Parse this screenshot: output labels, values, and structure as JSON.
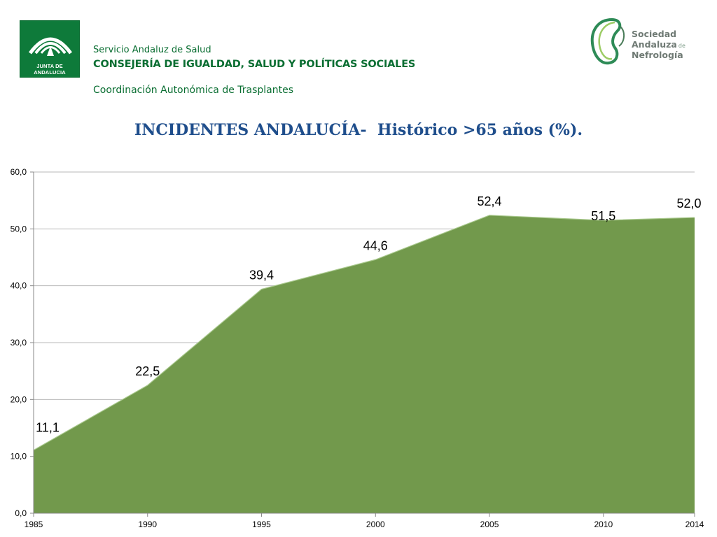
{
  "header": {
    "junta_logo_text": "JUNTA DE ANDALUCIA",
    "service": "Servicio Andaluz de Salud",
    "ministry": "CONSEJERÍA DE IGUALDAD, SALUD Y POLÍTICAS SOCIALES",
    "coordination": "Coordinación Autonómica de Trasplantes",
    "society": {
      "line1": "Sociedad",
      "line2": "Andaluza",
      "line2_suffix": "de",
      "line3": "Nefrología"
    }
  },
  "colors": {
    "area": "#72994c",
    "title": "#1f4e8c",
    "header_green": "#0a6e32",
    "grid": "#b9b9b9"
  },
  "chart_data": {
    "type": "area",
    "title": "INCIDENTES ANDALUCÍA-  Histórico >65 años (%).",
    "x": [
      1985,
      1990,
      1995,
      2000,
      2005,
      2010,
      2014
    ],
    "x_tick_labels": [
      "1985",
      "1990",
      "1995",
      "2000",
      "2005",
      "2010",
      "2014"
    ],
    "values": [
      11.1,
      22.5,
      39.4,
      44.6,
      52.4,
      51.5,
      52.0
    ],
    "data_labels": [
      "11,1",
      "22,5",
      "39,4",
      "44,6",
      "52,4",
      "51,5",
      "52,0"
    ],
    "y_tick_labels": [
      "0,0",
      "10,0",
      "20,0",
      "30,0",
      "40,0",
      "50,0",
      "60,0"
    ],
    "ylim": [
      0,
      60
    ],
    "grid": true,
    "legend": "none"
  }
}
